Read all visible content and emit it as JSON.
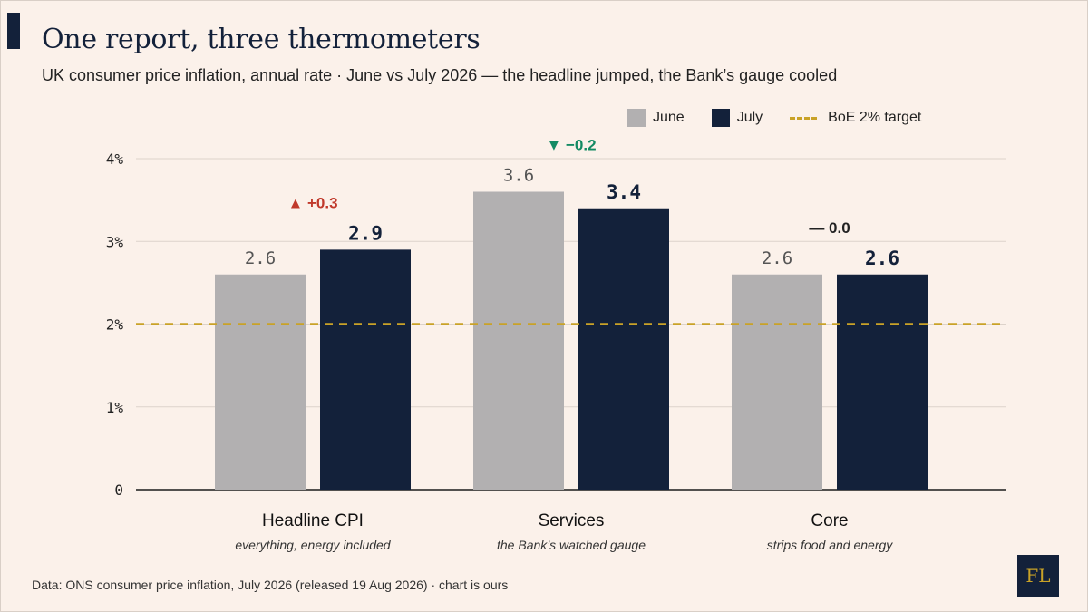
{
  "title": "One report, three thermometers",
  "subtitle": "UK consumer price inflation, annual rate · June vs July 2026 — the headline jumped, the Bank’s gauge cooled",
  "legend": {
    "june": "June",
    "july": "July",
    "target": "BoE 2% target"
  },
  "source": "Data: ONS consumer price inflation, July 2026 (released 19 Aug 2026) · chart is ours",
  "logo": "FL",
  "colors": {
    "background": "#fbf1ea",
    "june": "#b2b0b1",
    "july": "#13213a",
    "target": "#c9a227",
    "up": "#c0392b",
    "down": "#138a63",
    "flat": "#222222"
  },
  "chart_data": {
    "type": "bar",
    "categories": [
      "Headline CPI",
      "Services",
      "Core"
    ],
    "category_notes": [
      "everything, energy included",
      "the Bank’s watched gauge",
      "strips food and energy"
    ],
    "series": [
      {
        "name": "June",
        "values": [
          2.6,
          3.6,
          2.6
        ],
        "labels": [
          "2.6",
          "3.6",
          "2.6"
        ]
      },
      {
        "name": "July",
        "values": [
          2.9,
          3.4,
          2.6
        ],
        "labels": [
          "2.9",
          "3.4",
          "2.6"
        ]
      }
    ],
    "changes": [
      {
        "text": "▲ +0.3",
        "direction": "up"
      },
      {
        "text": "▼ −0.2",
        "direction": "down"
      },
      {
        "text": "— 0.0",
        "direction": "flat"
      }
    ],
    "reference_line": {
      "value": 2,
      "label": "BoE 2% target"
    },
    "yticks": [
      {
        "value": 0,
        "label": "0"
      },
      {
        "value": 1,
        "label": "1%"
      },
      {
        "value": 2,
        "label": "2%"
      },
      {
        "value": 3,
        "label": "3%"
      },
      {
        "value": 4,
        "label": "4%"
      }
    ],
    "ylim": [
      0,
      4
    ],
    "grid": true,
    "legend_position": "top-right",
    "xlabel": "",
    "ylabel": ""
  }
}
